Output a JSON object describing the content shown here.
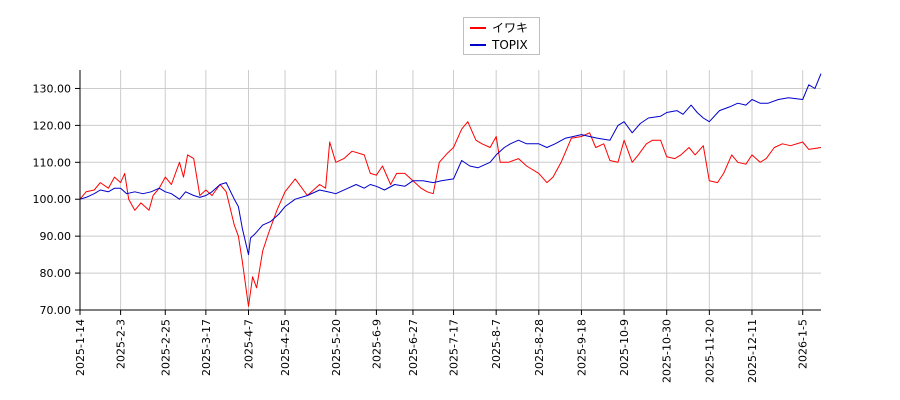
{
  "chart_data": {
    "type": "line",
    "title": "",
    "xlabel": "",
    "ylabel": "",
    "ylim": [
      70,
      135
    ],
    "yticks": [
      70,
      80,
      90,
      100,
      110,
      120,
      130
    ],
    "ytick_labels": [
      "70.00",
      "80.00",
      "90.00",
      "100.00",
      "110.00",
      "120.00",
      "130.00"
    ],
    "xlim": [
      "2025-01-14",
      "2026-01-14"
    ],
    "xtick_labels": [
      "2025-1-14",
      "2025-2-3",
      "2025-2-25",
      "2025-3-17",
      "2025-4-7",
      "2025-4-25",
      "2025-5-20",
      "2025-6-9",
      "2025-6-27",
      "2025-7-17",
      "2025-8-7",
      "2025-8-28",
      "2025-9-18",
      "2025-10-9",
      "2025-10-30",
      "2025-11-20",
      "2025-12-11",
      "2026-1-5"
    ],
    "grid": true,
    "legend_position": "top-center",
    "series": [
      {
        "name": "イワキ",
        "color": "#ff0000",
        "points": [
          [
            "2025-01-14",
            100
          ],
          [
            "2025-01-17",
            102
          ],
          [
            "2025-01-21",
            102.5
          ],
          [
            "2025-01-24",
            104.5
          ],
          [
            "2025-01-28",
            103
          ],
          [
            "2025-01-31",
            106
          ],
          [
            "2025-02-03",
            104.5
          ],
          [
            "2025-02-05",
            107
          ],
          [
            "2025-02-07",
            100
          ],
          [
            "2025-02-10",
            97
          ],
          [
            "2025-02-13",
            99
          ],
          [
            "2025-02-17",
            97
          ],
          [
            "2025-02-19",
            101
          ],
          [
            "2025-02-22",
            103
          ],
          [
            "2025-02-25",
            106
          ],
          [
            "2025-02-28",
            104
          ],
          [
            "2025-03-04",
            110
          ],
          [
            "2025-03-06",
            106
          ],
          [
            "2025-03-08",
            112
          ],
          [
            "2025-03-11",
            111
          ],
          [
            "2025-03-14",
            101
          ],
          [
            "2025-03-17",
            102.5
          ],
          [
            "2025-03-20",
            101
          ],
          [
            "2025-03-24",
            104
          ],
          [
            "2025-03-27",
            102
          ],
          [
            "2025-03-31",
            93
          ],
          [
            "2025-04-02",
            90
          ],
          [
            "2025-04-04",
            83
          ],
          [
            "2025-04-07",
            71
          ],
          [
            "2025-04-09",
            79
          ],
          [
            "2025-04-11",
            76
          ],
          [
            "2025-04-14",
            86
          ],
          [
            "2025-04-17",
            91
          ],
          [
            "2025-04-21",
            97
          ],
          [
            "2025-04-25",
            102
          ],
          [
            "2025-04-30",
            105.5
          ],
          [
            "2025-05-06",
            101
          ],
          [
            "2025-05-12",
            104
          ],
          [
            "2025-05-15",
            103
          ],
          [
            "2025-05-17",
            115.5
          ],
          [
            "2025-05-20",
            110
          ],
          [
            "2025-05-24",
            111
          ],
          [
            "2025-05-28",
            113
          ],
          [
            "2025-06-03",
            112
          ],
          [
            "2025-06-06",
            107
          ],
          [
            "2025-06-09",
            106.5
          ],
          [
            "2025-06-12",
            109
          ],
          [
            "2025-06-16",
            104
          ],
          [
            "2025-06-19",
            107
          ],
          [
            "2025-06-23",
            107
          ],
          [
            "2025-06-27",
            105
          ],
          [
            "2025-07-01",
            103
          ],
          [
            "2025-07-04",
            102
          ],
          [
            "2025-07-07",
            101.5
          ],
          [
            "2025-07-10",
            110
          ],
          [
            "2025-07-14",
            112.5
          ],
          [
            "2025-07-17",
            114
          ],
          [
            "2025-07-21",
            119
          ],
          [
            "2025-07-24",
            121
          ],
          [
            "2025-07-28",
            116
          ],
          [
            "2025-07-31",
            115
          ],
          [
            "2025-08-04",
            114
          ],
          [
            "2025-08-07",
            117
          ],
          [
            "2025-08-09",
            110
          ],
          [
            "2025-08-13",
            110
          ],
          [
            "2025-08-18",
            111
          ],
          [
            "2025-08-22",
            109
          ],
          [
            "2025-08-28",
            107
          ],
          [
            "2025-09-01",
            104.5
          ],
          [
            "2025-09-04",
            106
          ],
          [
            "2025-09-08",
            110
          ],
          [
            "2025-09-13",
            116.5
          ],
          [
            "2025-09-18",
            117
          ],
          [
            "2025-09-22",
            118
          ],
          [
            "2025-09-25",
            114
          ],
          [
            "2025-09-29",
            115
          ],
          [
            "2025-10-02",
            110.5
          ],
          [
            "2025-10-06",
            110
          ],
          [
            "2025-10-09",
            116
          ],
          [
            "2025-10-13",
            110
          ],
          [
            "2025-10-16",
            112
          ],
          [
            "2025-10-20",
            115
          ],
          [
            "2025-10-23",
            116
          ],
          [
            "2025-10-27",
            116
          ],
          [
            "2025-10-30",
            111.5
          ],
          [
            "2025-11-03",
            111
          ],
          [
            "2025-11-06",
            112
          ],
          [
            "2025-11-10",
            114
          ],
          [
            "2025-11-13",
            112
          ],
          [
            "2025-11-17",
            114.5
          ],
          [
            "2025-11-20",
            105
          ],
          [
            "2025-11-24",
            104.5
          ],
          [
            "2025-11-27",
            107
          ],
          [
            "2025-12-01",
            112
          ],
          [
            "2025-12-04",
            110
          ],
          [
            "2025-12-08",
            109.5
          ],
          [
            "2025-12-11",
            112
          ],
          [
            "2025-12-15",
            110
          ],
          [
            "2025-12-18",
            111
          ],
          [
            "2025-12-22",
            114
          ],
          [
            "2025-12-26",
            115
          ],
          [
            "2025-12-30",
            114.5
          ],
          [
            "2026-01-05",
            115.5
          ],
          [
            "2026-01-08",
            113.5
          ],
          [
            "2026-01-14",
            114
          ]
        ]
      },
      {
        "name": "TOPIX",
        "color": "#0000cc",
        "points": [
          [
            "2025-01-14",
            100
          ],
          [
            "2025-01-17",
            100.5
          ],
          [
            "2025-01-21",
            101.5
          ],
          [
            "2025-01-24",
            102.5
          ],
          [
            "2025-01-28",
            102
          ],
          [
            "2025-01-31",
            103
          ],
          [
            "2025-02-03",
            103
          ],
          [
            "2025-02-06",
            101.5
          ],
          [
            "2025-02-10",
            102
          ],
          [
            "2025-02-14",
            101.5
          ],
          [
            "2025-02-18",
            102
          ],
          [
            "2025-02-22",
            103
          ],
          [
            "2025-02-25",
            102
          ],
          [
            "2025-02-28",
            101.5
          ],
          [
            "2025-03-04",
            100
          ],
          [
            "2025-03-07",
            102
          ],
          [
            "2025-03-11",
            101
          ],
          [
            "2025-03-14",
            100.5
          ],
          [
            "2025-03-17",
            101
          ],
          [
            "2025-03-20",
            102
          ],
          [
            "2025-03-24",
            104
          ],
          [
            "2025-03-27",
            104.5
          ],
          [
            "2025-03-31",
            100
          ],
          [
            "2025-04-02",
            98
          ],
          [
            "2025-04-04",
            92
          ],
          [
            "2025-04-07",
            85
          ],
          [
            "2025-04-08",
            89.5
          ],
          [
            "2025-04-10",
            90.5
          ],
          [
            "2025-04-14",
            93
          ],
          [
            "2025-04-18",
            94
          ],
          [
            "2025-04-22",
            96
          ],
          [
            "2025-04-25",
            98
          ],
          [
            "2025-04-30",
            100
          ],
          [
            "2025-05-06",
            101
          ],
          [
            "2025-05-12",
            102.5
          ],
          [
            "2025-05-16",
            102
          ],
          [
            "2025-05-20",
            101.5
          ],
          [
            "2025-05-26",
            103
          ],
          [
            "2025-05-30",
            104
          ],
          [
            "2025-06-03",
            103
          ],
          [
            "2025-06-06",
            104
          ],
          [
            "2025-06-09",
            103.5
          ],
          [
            "2025-06-13",
            102.5
          ],
          [
            "2025-06-18",
            104
          ],
          [
            "2025-06-23",
            103.5
          ],
          [
            "2025-06-27",
            105
          ],
          [
            "2025-07-02",
            105
          ],
          [
            "2025-07-07",
            104.5
          ],
          [
            "2025-07-11",
            105
          ],
          [
            "2025-07-17",
            105.5
          ],
          [
            "2025-07-21",
            110.5
          ],
          [
            "2025-07-25",
            109
          ],
          [
            "2025-07-29",
            108.5
          ],
          [
            "2025-08-04",
            110
          ],
          [
            "2025-08-07",
            112
          ],
          [
            "2025-08-11",
            114
          ],
          [
            "2025-08-14",
            115
          ],
          [
            "2025-08-18",
            116
          ],
          [
            "2025-08-22",
            115
          ],
          [
            "2025-08-28",
            115
          ],
          [
            "2025-09-01",
            114
          ],
          [
            "2025-09-05",
            115
          ],
          [
            "2025-09-10",
            116.5
          ],
          [
            "2025-09-14",
            117
          ],
          [
            "2025-09-18",
            117.5
          ],
          [
            "2025-09-22",
            117
          ],
          [
            "2025-09-26",
            116.5
          ],
          [
            "2025-10-02",
            116
          ],
          [
            "2025-10-06",
            120
          ],
          [
            "2025-10-09",
            121
          ],
          [
            "2025-10-13",
            118
          ],
          [
            "2025-10-17",
            120.5
          ],
          [
            "2025-10-21",
            122
          ],
          [
            "2025-10-27",
            122.5
          ],
          [
            "2025-10-30",
            123.5
          ],
          [
            "2025-11-04",
            124
          ],
          [
            "2025-11-07",
            123
          ],
          [
            "2025-11-11",
            125.5
          ],
          [
            "2025-11-14",
            123.5
          ],
          [
            "2025-11-17",
            122
          ],
          [
            "2025-11-20",
            121
          ],
          [
            "2025-11-25",
            124
          ],
          [
            "2025-11-30",
            125
          ],
          [
            "2025-12-04",
            126
          ],
          [
            "2025-12-08",
            125.5
          ],
          [
            "2025-12-11",
            127
          ],
          [
            "2025-12-15",
            126
          ],
          [
            "2025-12-19",
            126
          ],
          [
            "2025-12-24",
            127
          ],
          [
            "2025-12-29",
            127.5
          ],
          [
            "2026-01-05",
            127
          ],
          [
            "2026-01-08",
            131
          ],
          [
            "2026-01-11",
            130
          ],
          [
            "2026-01-14",
            134
          ]
        ]
      }
    ]
  }
}
